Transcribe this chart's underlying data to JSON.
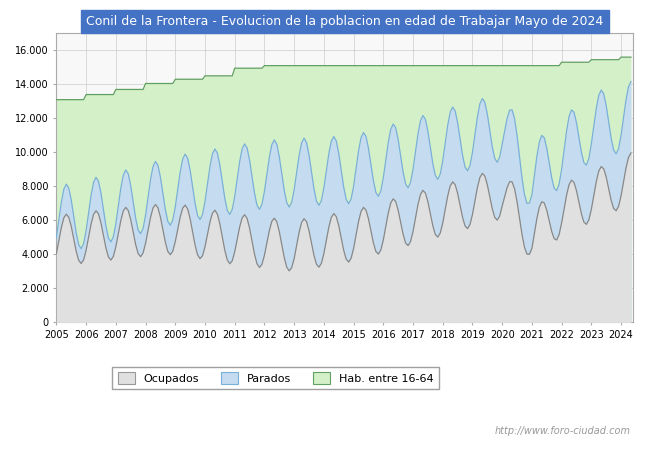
{
  "title": "Conil de la Frontera - Evolucion de la poblacion en edad de Trabajar Mayo de 2024",
  "title_bg": "#4472c4",
  "title_color": "white",
  "watermark": "http://www.foro-ciudad.com",
  "legend_labels": [
    "Ocupados",
    "Parados",
    "Hab. entre 16-64"
  ],
  "ylim": [
    0,
    17000
  ],
  "yticks": [
    0,
    2000,
    4000,
    6000,
    8000,
    10000,
    12000,
    14000,
    16000
  ],
  "color_ocupados_fill": "#e0e0e0",
  "color_parados_fill": "#c5dcf0",
  "color_hab_fill": "#d4f0c8",
  "line_color_ocupados": "#888888",
  "line_color_parados": "#7ab0d8",
  "line_color_hab": "#60a060"
}
